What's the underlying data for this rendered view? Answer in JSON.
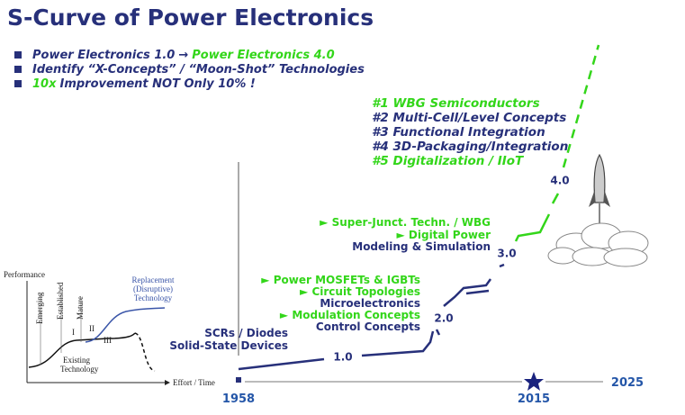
{
  "title": "S-Curve of Power Electronics",
  "bullets": [
    [
      "Power Electronics 1.0",
      "→",
      "Power Electronics 4.0"
    ],
    [
      "Identify “X-Concepts” / “Moon-Shot” Technologies"
    ],
    [
      "10x",
      "Improvement NOT Only 10% !"
    ]
  ],
  "goals": [
    "#1 WBG Semiconductors",
    "#2 Multi-Cell/Level Concepts",
    "#3 Functional Integration",
    "#4 3D-Packaging/Integration",
    "#5 Digitalization / IIoT"
  ],
  "stages": [
    "1.0",
    "2.0",
    "3.0",
    "4.0"
  ],
  "milestones": [
    [
      "SCRs / Diodes",
      "Solid-State Devices"
    ],
    [
      "► Power MOSFETs & IGBTs",
      "► Circuit Topologies",
      "Microelectronics",
      "► Modulation Concepts",
      "Control Concepts"
    ],
    [
      "► Super-Junct. Techn. / WBG",
      "► Digital Power",
      "Modeling & Simulation"
    ]
  ],
  "timeline": [
    "1958",
    "2015",
    "2025"
  ],
  "inset": {
    "y_label": "Performance",
    "x_label": "Effort / Time",
    "phases": [
      "Emerging",
      "Established",
      "Mature"
    ],
    "regions": [
      "I",
      "II",
      "III"
    ],
    "existing": [
      "Existing",
      "Technology"
    ],
    "replacement": [
      "Replacement",
      "(Disruptive)",
      "Technology"
    ]
  }
}
